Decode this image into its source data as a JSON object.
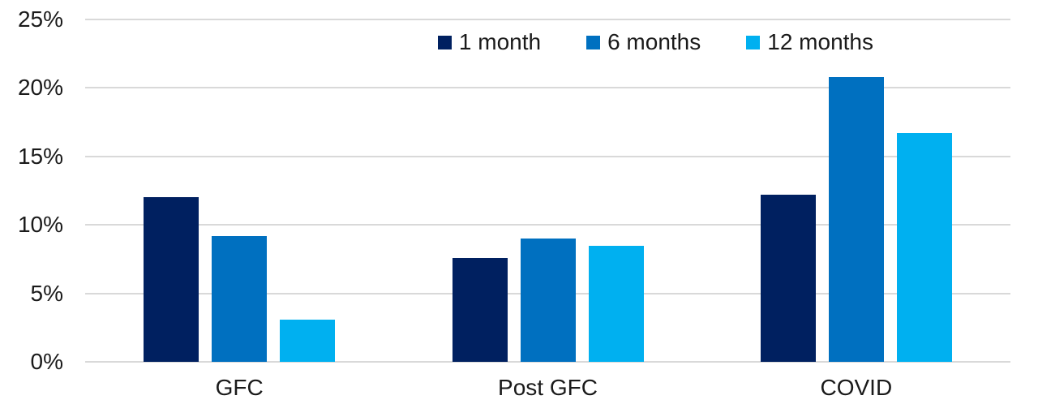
{
  "chart_data": {
    "type": "bar",
    "categories": [
      "GFC",
      "Post GFC",
      "COVID"
    ],
    "series": [
      {
        "name": "1 month",
        "color": "#002060",
        "values": [
          12.0,
          7.6,
          12.2
        ]
      },
      {
        "name": "6 months",
        "color": "#0070C0",
        "values": [
          9.2,
          9.0,
          20.8
        ]
      },
      {
        "name": "12 months",
        "color": "#00B0F0",
        "values": [
          3.1,
          8.5,
          16.7
        ]
      }
    ],
    "ylim": [
      0,
      25
    ],
    "yticks": [
      {
        "value": 0,
        "label": "0%"
      },
      {
        "value": 5,
        "label": "5%"
      },
      {
        "value": 10,
        "label": "10%"
      },
      {
        "value": 15,
        "label": "15%"
      },
      {
        "value": 20,
        "label": "20%"
      },
      {
        "value": 25,
        "label": "25%"
      }
    ],
    "grid": true,
    "legend_position": "top-right",
    "colors": {
      "gridline": "#D9D9D9",
      "axis_line": "#D9D9D9",
      "text": "#1A1A1A",
      "background": "#FFFFFF"
    }
  }
}
